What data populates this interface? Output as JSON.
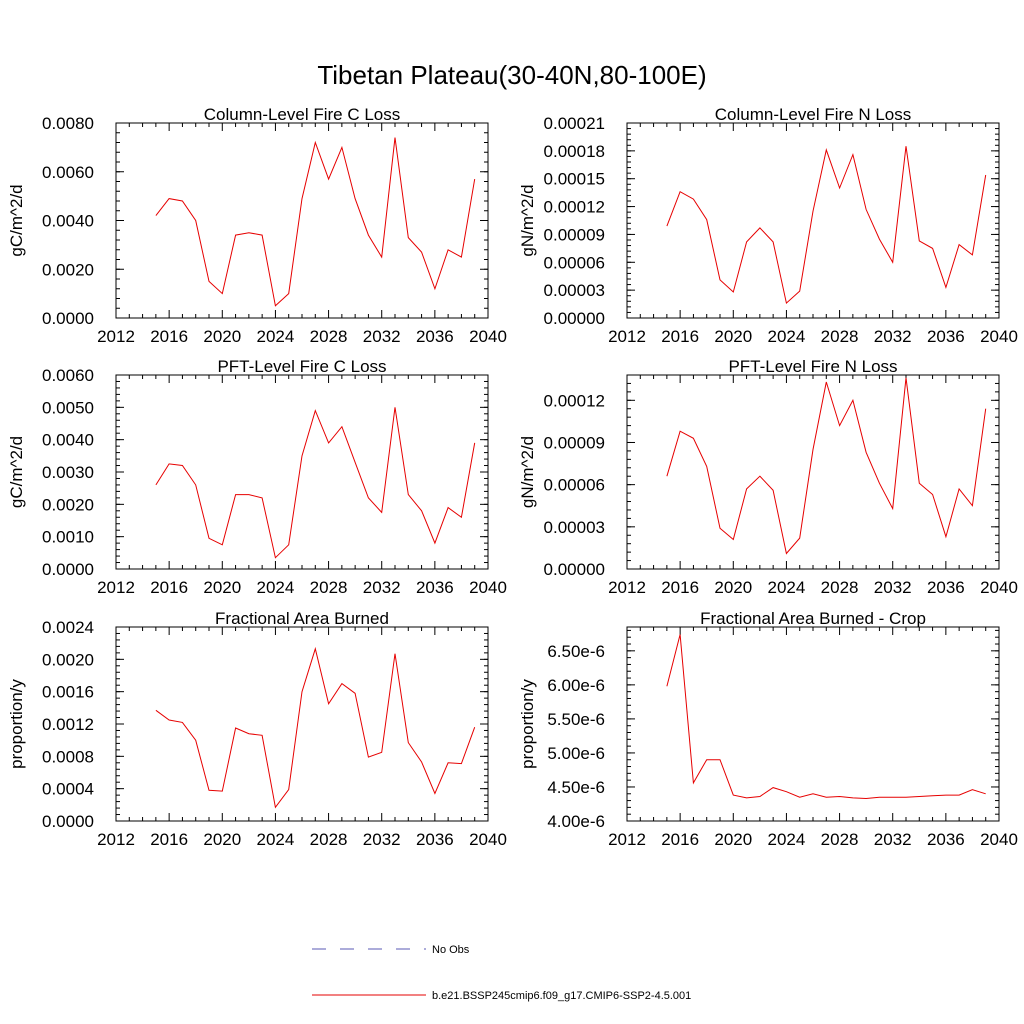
{
  "figure": {
    "title": "Tibetan Plateau(30-40N,80-100E)"
  },
  "legend": {
    "items": [
      {
        "label": "No Obs",
        "color": "#5a5ab4",
        "dash": true
      },
      {
        "label": "b.e21.BSSP245cmip6.f09_g17.CMIP6-SSP2-4.5.001",
        "color": "#e60000",
        "dash": false
      }
    ]
  },
  "chart_data": [
    {
      "type": "line",
      "title": "Column-Level Fire C Loss",
      "ylabel": "gC/m^2/d",
      "xlim": [
        2012,
        2040
      ],
      "xticks": [
        "2012",
        "2016",
        "2020",
        "2024",
        "2028",
        "2032",
        "2036",
        "2040"
      ],
      "ylim": [
        0,
        0.008
      ],
      "yticks": [
        "0.0000",
        "0.0020",
        "0.0040",
        "0.0060",
        "0.0080"
      ],
      "series": [
        {
          "color": "#e60000",
          "x": [
            2015,
            2016,
            2017,
            2018,
            2019,
            2020,
            2021,
            2022,
            2023,
            2024,
            2025,
            2026,
            2027,
            2028,
            2029,
            2030,
            2031,
            2032,
            2033,
            2034,
            2035,
            2036,
            2037,
            2038,
            2039
          ],
          "y": [
            0.0042,
            0.0049,
            0.0048,
            0.004,
            0.0015,
            0.001,
            0.0034,
            0.0035,
            0.0034,
            0.0005,
            0.001,
            0.0049,
            0.0072,
            0.0057,
            0.007,
            0.0049,
            0.0034,
            0.0025,
            0.0074,
            0.0033,
            0.0027,
            0.0012,
            0.0028,
            0.0025,
            0.0057
          ]
        }
      ]
    },
    {
      "type": "line",
      "title": "Column-Level Fire N Loss",
      "ylabel": "gN/m^2/d",
      "xlim": [
        2012,
        2040
      ],
      "xticks": [
        "2012",
        "2016",
        "2020",
        "2024",
        "2028",
        "2032",
        "2036",
        "2040"
      ],
      "ylim": [
        0,
        0.00021
      ],
      "yticks": [
        "0.00000",
        "0.00003",
        "0.00006",
        "0.00009",
        "0.00012",
        "0.00015",
        "0.00018",
        "0.00021"
      ],
      "series": [
        {
          "color": "#e60000",
          "x": [
            2015,
            2016,
            2017,
            2018,
            2019,
            2020,
            2021,
            2022,
            2023,
            2024,
            2025,
            2026,
            2027,
            2028,
            2029,
            2030,
            2031,
            2032,
            2033,
            2034,
            2035,
            2036,
            2037,
            2038,
            2039
          ],
          "y": [
            9.9e-05,
            0.000136,
            0.000128,
            0.000106,
            4.1e-05,
            2.8e-05,
            8.2e-05,
            9.7e-05,
            8.2e-05,
            1.6e-05,
            2.9e-05,
            0.000115,
            0.000181,
            0.00014,
            0.000176,
            0.000117,
            8.5e-05,
            6e-05,
            0.000185,
            8.3e-05,
            7.5e-05,
            3.3e-05,
            7.9e-05,
            6.8e-05,
            0.000154
          ]
        }
      ]
    },
    {
      "type": "line",
      "title": "PFT-Level Fire C Loss",
      "ylabel": "gC/m^2/d",
      "xlim": [
        2012,
        2040
      ],
      "xticks": [
        "2012",
        "2016",
        "2020",
        "2024",
        "2028",
        "2032",
        "2036",
        "2040"
      ],
      "ylim": [
        0,
        0.006
      ],
      "yticks": [
        "0.0000",
        "0.0010",
        "0.0020",
        "0.0030",
        "0.0040",
        "0.0050",
        "0.0060"
      ],
      "series": [
        {
          "color": "#e60000",
          "x": [
            2015,
            2016,
            2017,
            2018,
            2019,
            2020,
            2021,
            2022,
            2023,
            2024,
            2025,
            2026,
            2027,
            2028,
            2029,
            2030,
            2031,
            2032,
            2033,
            2034,
            2035,
            2036,
            2037,
            2038,
            2039
          ],
          "y": [
            0.0026,
            0.00325,
            0.0032,
            0.0026,
            0.00095,
            0.00075,
            0.0023,
            0.0023,
            0.0022,
            0.00035,
            0.00075,
            0.0035,
            0.0049,
            0.0039,
            0.0044,
            0.0033,
            0.0022,
            0.00175,
            0.005,
            0.0023,
            0.0018,
            0.0008,
            0.0019,
            0.0016,
            0.0039
          ]
        }
      ]
    },
    {
      "type": "line",
      "title": "PFT-Level Fire N Loss",
      "ylabel": "gN/m^2/d",
      "xlim": [
        2012,
        2040
      ],
      "xticks": [
        "2012",
        "2016",
        "2020",
        "2024",
        "2028",
        "2032",
        "2036",
        "2040"
      ],
      "ylim": [
        0,
        0.000138
      ],
      "yticks": [
        "0.00000",
        "0.00003",
        "0.00006",
        "0.00009",
        "0.00012"
      ],
      "series": [
        {
          "color": "#e60000",
          "x": [
            2015,
            2016,
            2017,
            2018,
            2019,
            2020,
            2021,
            2022,
            2023,
            2024,
            2025,
            2026,
            2027,
            2028,
            2029,
            2030,
            2031,
            2032,
            2033,
            2034,
            2035,
            2036,
            2037,
            2038,
            2039
          ],
          "y": [
            6.6e-05,
            9.8e-05,
            9.3e-05,
            7.3e-05,
            2.9e-05,
            2.1e-05,
            5.7e-05,
            6.6e-05,
            5.6e-05,
            1.1e-05,
            2.2e-05,
            8.5e-05,
            0.000133,
            0.000102,
            0.00012,
            8.3e-05,
            6.1e-05,
            4.3e-05,
            0.000136,
            6.1e-05,
            5.3e-05,
            2.3e-05,
            5.7e-05,
            4.5e-05,
            0.000114
          ]
        }
      ]
    },
    {
      "type": "line",
      "title": "Fractional Area Burned",
      "ylabel": "proportion/y",
      "xlim": [
        2012,
        2040
      ],
      "xticks": [
        "2012",
        "2016",
        "2020",
        "2024",
        "2028",
        "2032",
        "2036",
        "2040"
      ],
      "ylim": [
        0,
        0.0024
      ],
      "yticks": [
        "0.0000",
        "0.0004",
        "0.0008",
        "0.0012",
        "0.0016",
        "0.0020",
        "0.0024"
      ],
      "series": [
        {
          "color": "#e60000",
          "x": [
            2015,
            2016,
            2017,
            2018,
            2019,
            2020,
            2021,
            2022,
            2023,
            2024,
            2025,
            2026,
            2027,
            2028,
            2029,
            2030,
            2031,
            2032,
            2033,
            2034,
            2035,
            2036,
            2037,
            2038,
            2039
          ],
          "y": [
            0.00137,
            0.00125,
            0.00122,
            0.001,
            0.00038,
            0.00037,
            0.00115,
            0.00108,
            0.00106,
            0.00017,
            0.00039,
            0.0016,
            0.00213,
            0.00145,
            0.0017,
            0.00158,
            0.00079,
            0.00085,
            0.00207,
            0.00097,
            0.00073,
            0.00034,
            0.00072,
            0.00071,
            0.00116
          ]
        }
      ]
    },
    {
      "type": "line",
      "title": "Fractional Area Burned - Crop",
      "ylabel": "proportion/y",
      "xlim": [
        2012,
        2040
      ],
      "xticks": [
        "2012",
        "2016",
        "2020",
        "2024",
        "2028",
        "2032",
        "2036",
        "2040"
      ],
      "ylim": [
        4e-06,
        6.85e-06
      ],
      "yticks": [
        "4.00e-6",
        "4.50e-6",
        "5.00e-6",
        "5.50e-6",
        "6.00e-6",
        "6.50e-6"
      ],
      "series": [
        {
          "color": "#e60000",
          "x": [
            2015,
            2016,
            2017,
            2018,
            2019,
            2020,
            2021,
            2022,
            2023,
            2024,
            2025,
            2026,
            2027,
            2028,
            2029,
            2030,
            2031,
            2032,
            2033,
            2034,
            2035,
            2036,
            2037,
            2038,
            2039
          ],
          "y": [
            5.98e-06,
            6.74e-06,
            4.56e-06,
            4.9e-06,
            4.9e-06,
            4.38e-06,
            4.34e-06,
            4.36e-06,
            4.49e-06,
            4.43e-06,
            4.35e-06,
            4.4e-06,
            4.35e-06,
            4.36e-06,
            4.34e-06,
            4.33e-06,
            4.35e-06,
            4.35e-06,
            4.35e-06,
            4.36e-06,
            4.37e-06,
            4.38e-06,
            4.38e-06,
            4.46e-06,
            4.4e-06
          ]
        }
      ]
    }
  ]
}
